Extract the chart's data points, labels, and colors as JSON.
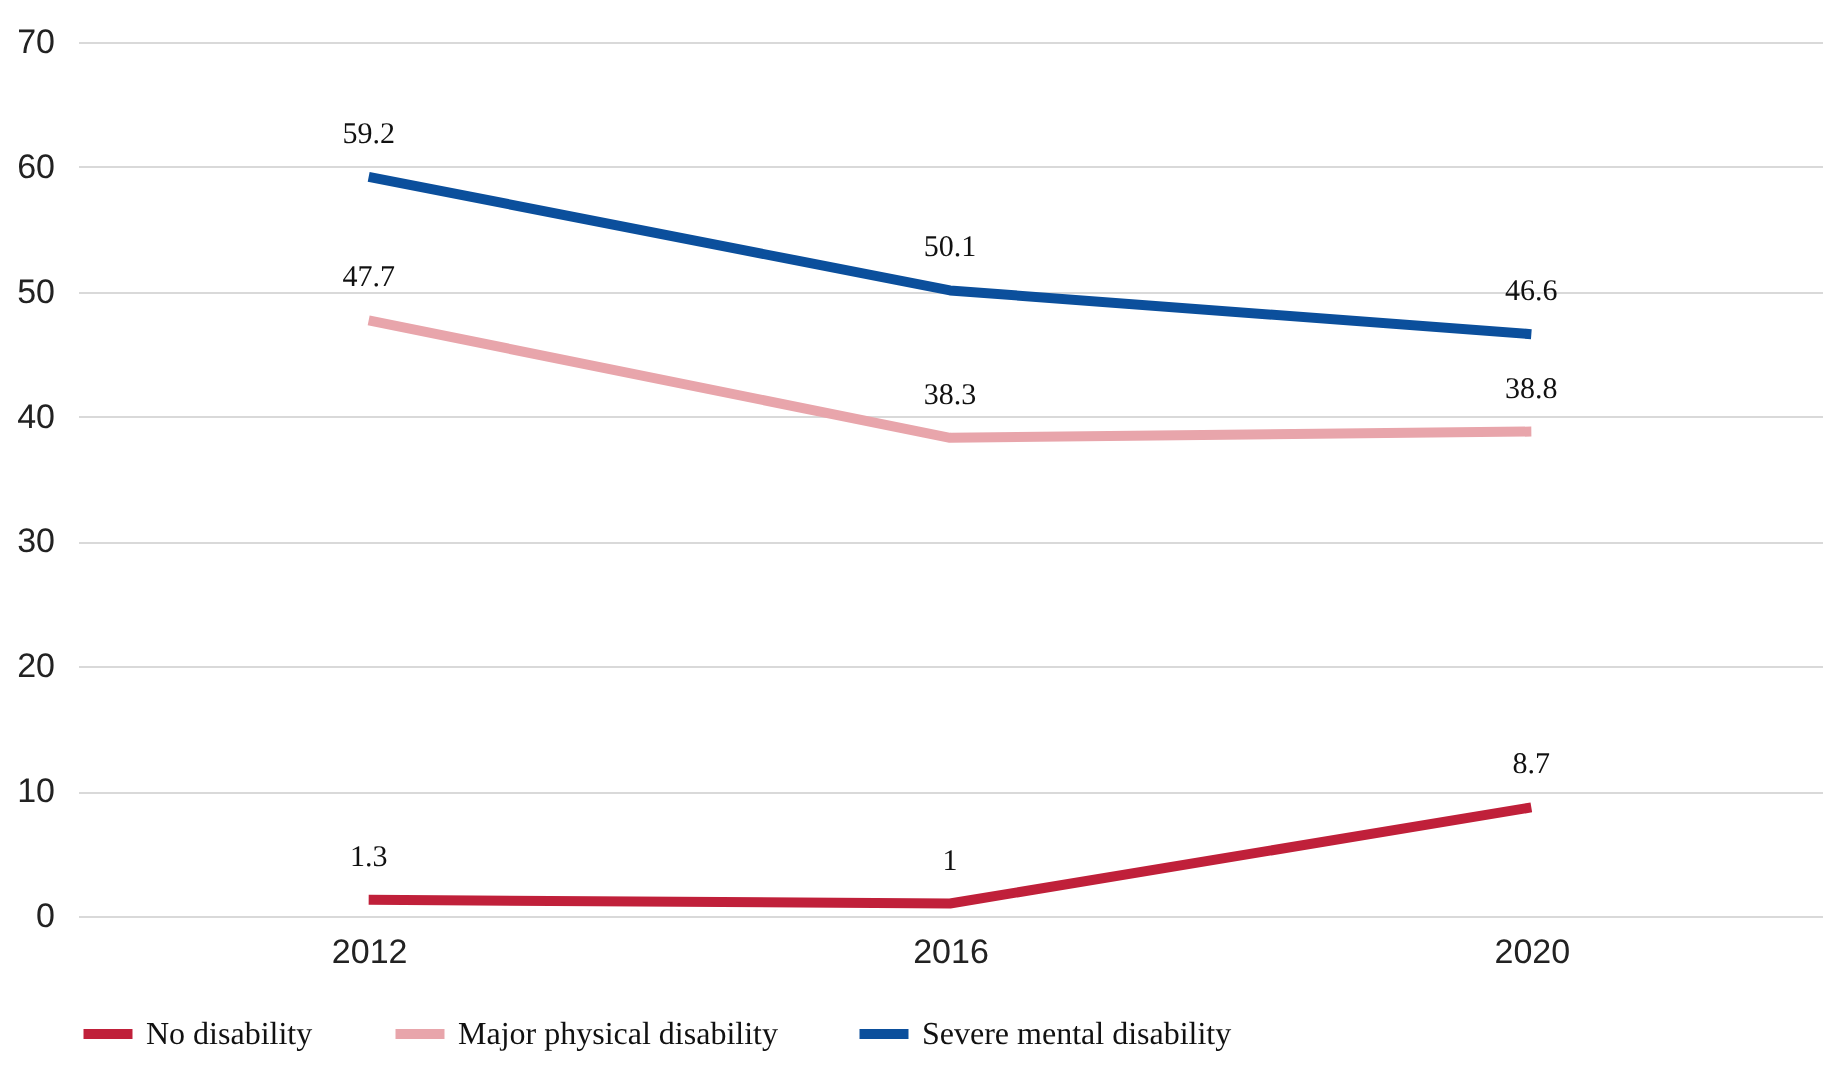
{
  "chart_data": {
    "type": "line",
    "categories": [
      "2012",
      "2016",
      "2020"
    ],
    "series": [
      {
        "name": "No disability",
        "color": "#c0203a",
        "values": [
          1.3,
          1,
          8.7
        ]
      },
      {
        "name": "Major physical disability",
        "color": "#e8a5ab",
        "values": [
          47.7,
          38.3,
          38.8
        ]
      },
      {
        "name": "Severe mental disability",
        "color": "#0b4f9c",
        "values": [
          59.2,
          50.1,
          46.6
        ]
      }
    ],
    "ylim": [
      0,
      70
    ],
    "yticks": [
      0,
      10,
      20,
      30,
      40,
      50,
      60,
      70
    ],
    "grid": "y",
    "legend": "bottom",
    "data_labels": true,
    "marker": "none",
    "line_style": "solid"
  }
}
